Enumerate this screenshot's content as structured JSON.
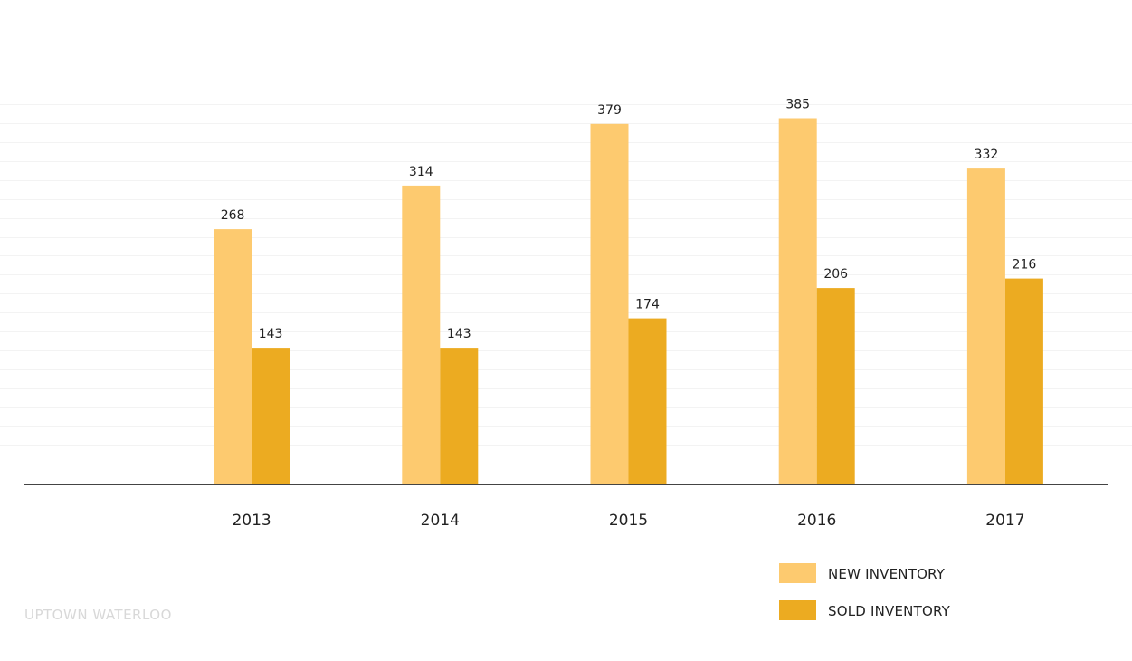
{
  "chart_data": {
    "type": "bar",
    "categories": [
      "2013",
      "2014",
      "2015",
      "2016",
      "2017"
    ],
    "series": [
      {
        "name": "NEW INVENTORY",
        "values": [
          268,
          314,
          379,
          385,
          332
        ],
        "color": "#fdca6f"
      },
      {
        "name": "SOLD INVENTORY",
        "values": [
          143,
          143,
          174,
          206,
          216
        ],
        "color": "#ecab21"
      }
    ],
    "title": "",
    "xlabel": "",
    "ylabel": "",
    "ylim": [
      0,
      400
    ],
    "grid": true,
    "legend_position": "bottom-right",
    "data_labels": true
  },
  "footer": {
    "label": "UPTOWN WATERLOO"
  },
  "colors": {
    "new_inventory": "#fdca6f",
    "sold_inventory": "#ecab21",
    "axis": "#444444",
    "grid": "#f3f3f3",
    "footer_text": "#d8d8d8"
  }
}
